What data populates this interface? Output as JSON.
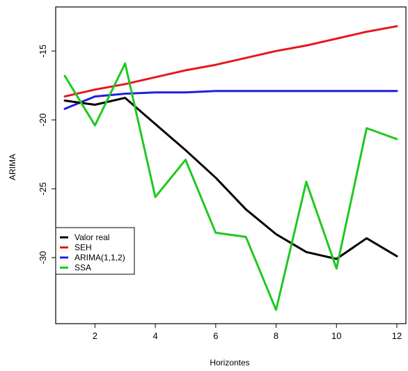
{
  "chart_data": {
    "type": "line",
    "title": "",
    "xlabel": "Horizontes",
    "ylabel": "ARIMA",
    "xlim": [
      0.7,
      12.3
    ],
    "ylim": [
      -34.8,
      -11.8
    ],
    "x_ticks": [
      "2",
      "4",
      "6",
      "8",
      "10",
      "12"
    ],
    "y_ticks": [
      "-15",
      "-20",
      "-25",
      "-30"
    ],
    "x": [
      1,
      2,
      3,
      4,
      5,
      6,
      7,
      8,
      9,
      10,
      11,
      12
    ],
    "grid": false,
    "legend_position": "bottom-left",
    "series": [
      {
        "name": "Valor real",
        "color": "#000000",
        "values": [
          -18.6,
          -18.9,
          -18.4,
          -20.3,
          -22.2,
          -24.2,
          -26.5,
          -28.3,
          -29.6,
          -30.1,
          -28.6,
          -29.9
        ]
      },
      {
        "name": "SEH",
        "color": "#e8171b",
        "values": [
          -18.3,
          -17.8,
          -17.4,
          -16.9,
          -16.4,
          -16.0,
          -15.5,
          -15.0,
          -14.6,
          -14.1,
          -13.6,
          -13.2
        ]
      },
      {
        "name": "ARIMA(1,1,2)",
        "color": "#1f1fe0",
        "values": [
          -19.2,
          -18.3,
          -18.1,
          -18.0,
          -18.0,
          -17.9,
          -17.9,
          -17.9,
          -17.9,
          -17.9,
          -17.9,
          -17.9
        ]
      },
      {
        "name": "SSA",
        "color": "#1ec91e",
        "values": [
          -16.8,
          -20.4,
          -15.9,
          -25.6,
          -22.9,
          -28.2,
          -28.5,
          -33.8,
          -24.5,
          -30.8,
          -20.6,
          -21.4
        ]
      }
    ]
  }
}
